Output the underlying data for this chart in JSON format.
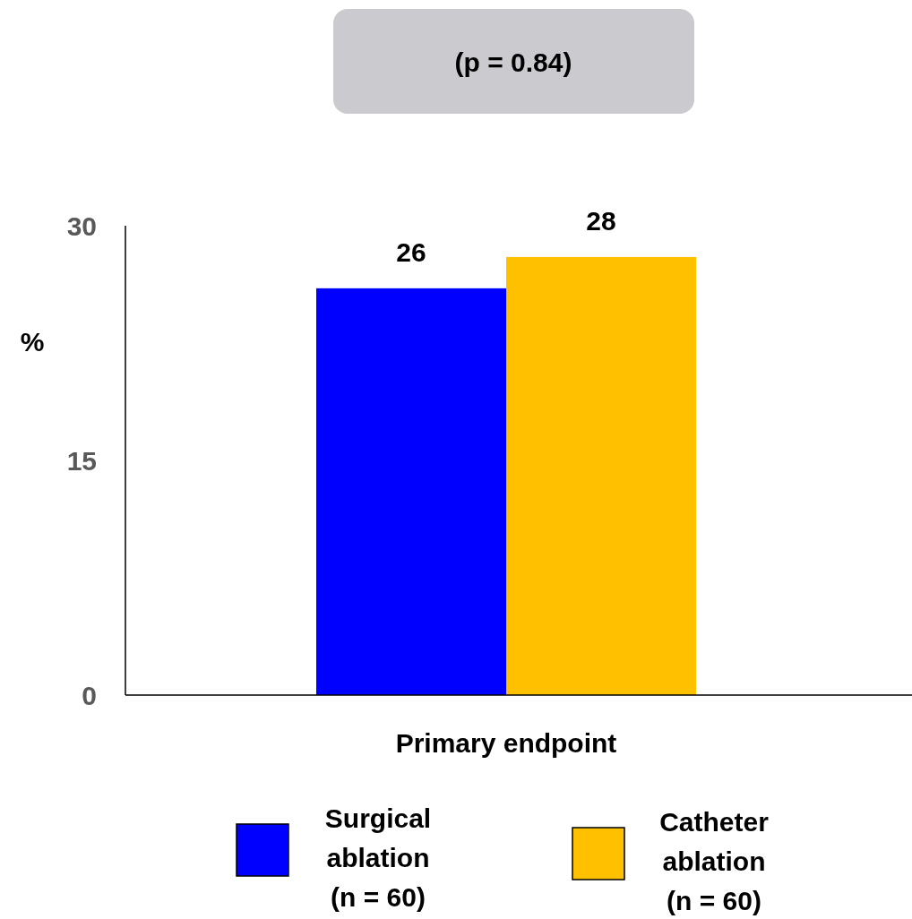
{
  "chart_data": {
    "type": "bar",
    "categories": [
      "Primary endpoint"
    ],
    "series": [
      {
        "name": "Surgical ablation (n = 60)",
        "color": "#0000ff",
        "values": [
          26
        ]
      },
      {
        "name": "Catheter ablation (n = 60)",
        "color": "#ffc000",
        "values": [
          28
        ]
      }
    ],
    "ylabel": "%",
    "ylim": [
      0,
      30
    ],
    "yticks": [
      0,
      15,
      30
    ],
    "data_labels": true,
    "legend": "bottom",
    "grid": false,
    "annotations": [
      "(p = 0.84)"
    ]
  }
}
